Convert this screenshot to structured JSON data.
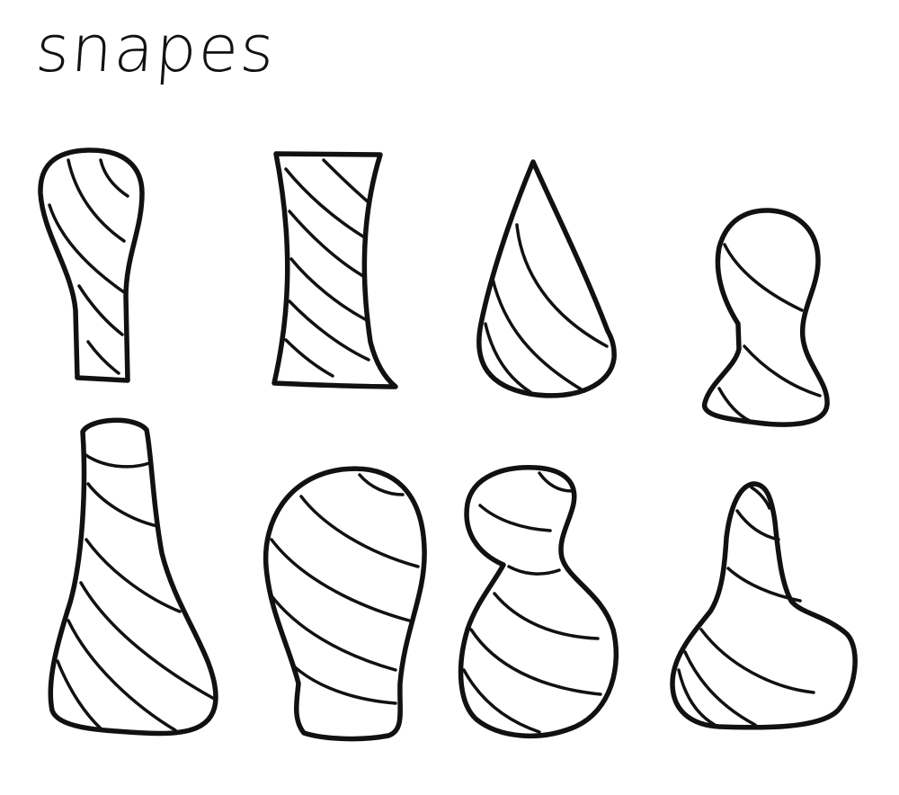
{
  "title": "snapes",
  "colors": {
    "ink": "#111111",
    "paper": "#ffffff"
  },
  "shapes": [
    {
      "name": "rounded-top-column"
    },
    {
      "name": "hourglass-column"
    },
    {
      "name": "cone"
    },
    {
      "name": "small-bulb"
    },
    {
      "name": "tall-flask"
    },
    {
      "name": "barrel-vase"
    },
    {
      "name": "double-bulb-vase"
    },
    {
      "name": "pointed-flask"
    }
  ]
}
